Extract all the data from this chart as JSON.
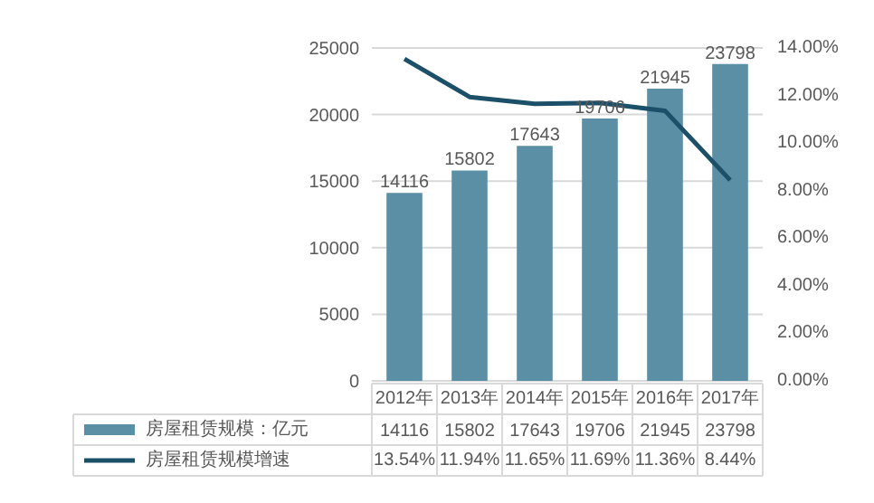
{
  "chart_data": {
    "type": "bar",
    "categories": [
      "2012年",
      "2013年",
      "2014年",
      "2015年",
      "2016年",
      "2017年"
    ],
    "series": [
      {
        "name": "房屋租赁规模：亿元",
        "color": "#5b8fa5",
        "values": [
          14116,
          15802,
          17643,
          19706,
          21945,
          23798
        ]
      },
      {
        "name": "房屋租赁规模增速",
        "type": "line",
        "axis": "y2",
        "color": "#1b5068",
        "values": [
          13.54,
          11.94,
          11.65,
          11.69,
          11.36,
          8.44
        ],
        "value_labels": [
          "13.54%",
          "11.94%",
          "11.65%",
          "11.69%",
          "11.36%",
          "8.44%"
        ]
      }
    ],
    "ylim": [
      0,
      25000
    ],
    "yticks": [
      0,
      5000,
      10000,
      15000,
      20000,
      25000
    ],
    "y2lim": [
      0,
      14
    ],
    "y2ticks": [
      {
        "value": 0,
        "label": "0.00%"
      },
      {
        "value": 2,
        "label": "2.00%"
      },
      {
        "value": 4,
        "label": "4.00%"
      },
      {
        "value": 6,
        "label": "6.00%"
      },
      {
        "value": 8,
        "label": "8.00%"
      },
      {
        "value": 10,
        "label": "10.00%"
      },
      {
        "value": 12,
        "label": "12.00%"
      },
      {
        "value": 14,
        "label": "14.00%"
      }
    ],
    "grid": "y",
    "legend": "bottom",
    "data_labels": true,
    "annotations": [
      {
        "text": "14116",
        "x": "2012年",
        "y": 14116
      },
      {
        "text": "15802",
        "x": "2013年",
        "y": 15802
      },
      {
        "text": "17643",
        "x": "2014年",
        "y": 17643
      },
      {
        "text": "19706",
        "x": "2015年",
        "y": 19706
      },
      {
        "text": "21945",
        "x": "2016年",
        "y": 21945
      },
      {
        "text": "23798",
        "x": "2017年",
        "y": 23798
      }
    ]
  }
}
